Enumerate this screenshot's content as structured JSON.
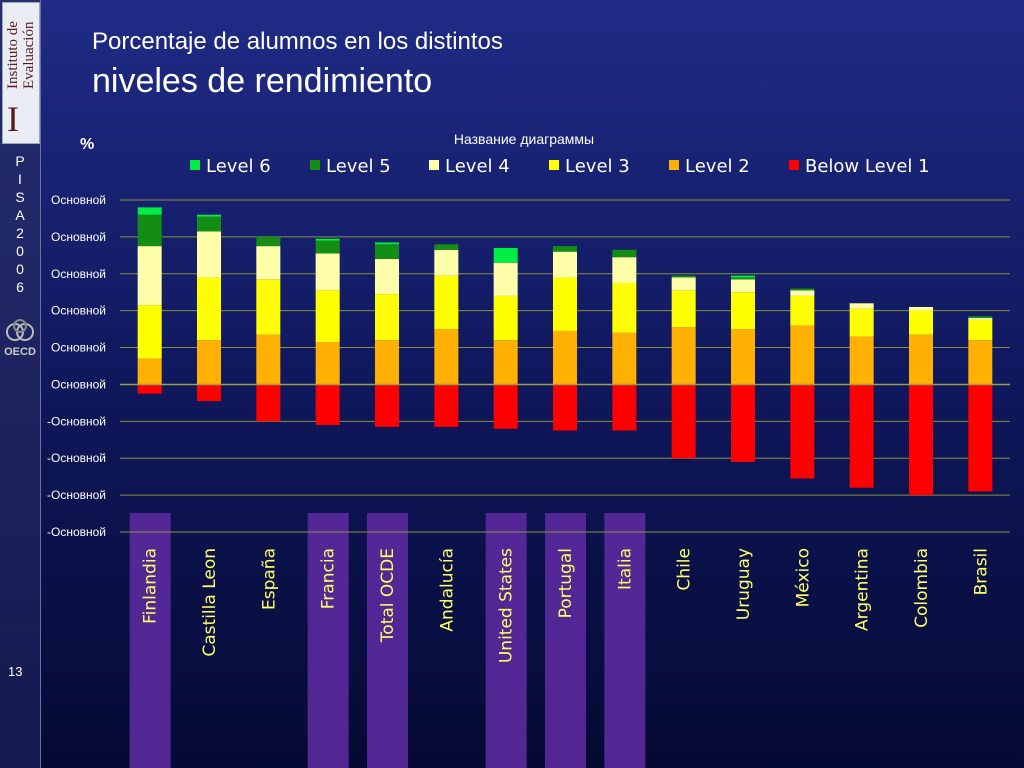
{
  "slide": {
    "title_line1": "Porcentaje de alumnos en los distintos",
    "title_line2": "niveles de rendimiento",
    "page_number": "13",
    "logo_text": "Instituto de Evaluación",
    "pisa_label": "PISA 2006",
    "oecd_label": "OECD"
  },
  "chart_data": {
    "type": "bar",
    "stacked": true,
    "title": "Название диаграммы",
    "ylabel": "%",
    "y_tick_labels": [
      "Основной",
      "Основной",
      "Основной",
      "Основной",
      "Основной",
      "Основной",
      "-Основной",
      "-Основной",
      "-Основной",
      "-Основной"
    ],
    "ylim": [
      -40,
      50
    ],
    "grid": true,
    "legend_position": "top",
    "categories": [
      "Finlandia",
      "Castilla Leon",
      "España",
      "Francia",
      "Total OCDE",
      "Andalucía",
      "United States",
      "Portugal",
      "Italia",
      "Chile",
      "Uruguay",
      "México",
      "Argentina",
      "Colombia",
      "Brasil"
    ],
    "highlighted_categories": [
      "Finlandia",
      "Francia",
      "Total OCDE",
      "United States",
      "Portugal",
      "Italia"
    ],
    "series": [
      {
        "name": "Below Level 1",
        "color": "#ff0000",
        "values": [
          -2.5,
          -4.5,
          -10,
          -11,
          -11.5,
          -11.5,
          -12,
          -12.5,
          -12.5,
          -20,
          -21,
          -25.5,
          -28,
          -30,
          -29
        ]
      },
      {
        "name": "Level 2",
        "color": "#ffb000",
        "values": [
          7,
          12,
          13.5,
          11.5,
          12,
          15,
          12,
          14.5,
          14,
          15.5,
          15,
          16,
          13,
          13.5,
          12
        ]
      },
      {
        "name": "Level 3",
        "color": "#ffff00",
        "values": [
          14.5,
          17,
          15,
          14,
          12.5,
          14.5,
          12,
          14.5,
          13.5,
          10,
          10,
          8,
          7.5,
          6.5,
          5.5
        ]
      },
      {
        "name": "Level 4",
        "color": "#ffffaa",
        "values": [
          16,
          12.5,
          9,
          10,
          9.5,
          7,
          9,
          7,
          7,
          3.5,
          3.5,
          1.5,
          1.5,
          1,
          0.5
        ]
      },
      {
        "name": "Level 5",
        "color": "#138d13",
        "values": [
          8.5,
          4,
          2.5,
          3.5,
          4,
          1.5,
          0,
          1.5,
          2,
          0.5,
          0.5,
          0.5,
          0,
          0,
          0.5
        ]
      },
      {
        "name": "Level 6",
        "color": "#00ee44",
        "values": [
          2,
          0.5,
          0,
          0.5,
          0.5,
          0,
          4,
          0,
          0,
          0,
          0.5,
          0,
          0,
          0,
          0
        ]
      }
    ],
    "legend_order": [
      "Level 6",
      "Level 5",
      "Level 4",
      "Level 3",
      "Level 2",
      "Below Level 1"
    ]
  }
}
